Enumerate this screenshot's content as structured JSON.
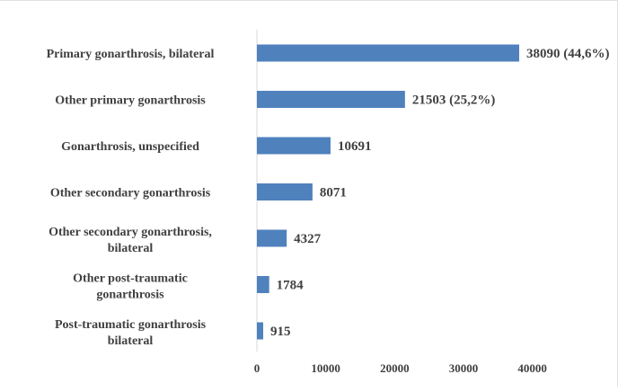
{
  "chart_data": {
    "type": "bar",
    "orientation": "horizontal",
    "title": "",
    "xlabel": "",
    "ylabel": "",
    "xlim": [
      0,
      40000
    ],
    "x_ticks": [
      "0",
      "10000",
      "20000",
      "30000",
      "40000"
    ],
    "grid": false,
    "legend": "none",
    "bar_color": "#4f81bd",
    "categories": [
      [
        "Primary gonarthrosis, bilateral"
      ],
      [
        "Other primary gonarthrosis"
      ],
      [
        "Gonarthrosis, unspecified"
      ],
      [
        "Other secondary gonarthrosis"
      ],
      [
        "Other secondary gonarthrosis,",
        "bilateral"
      ],
      [
        "Other post-traumatic",
        "gonarthrosis"
      ],
      [
        "Post-traumatic gonarthrosis",
        "bilateral"
      ]
    ],
    "values": [
      38090,
      21503,
      10691,
      8071,
      4327,
      1784,
      915
    ],
    "data_labels": [
      "38090 (44,6%)",
      "21503 (25,2%)",
      "10691",
      "8071",
      "4327",
      "1784",
      "915"
    ]
  }
}
